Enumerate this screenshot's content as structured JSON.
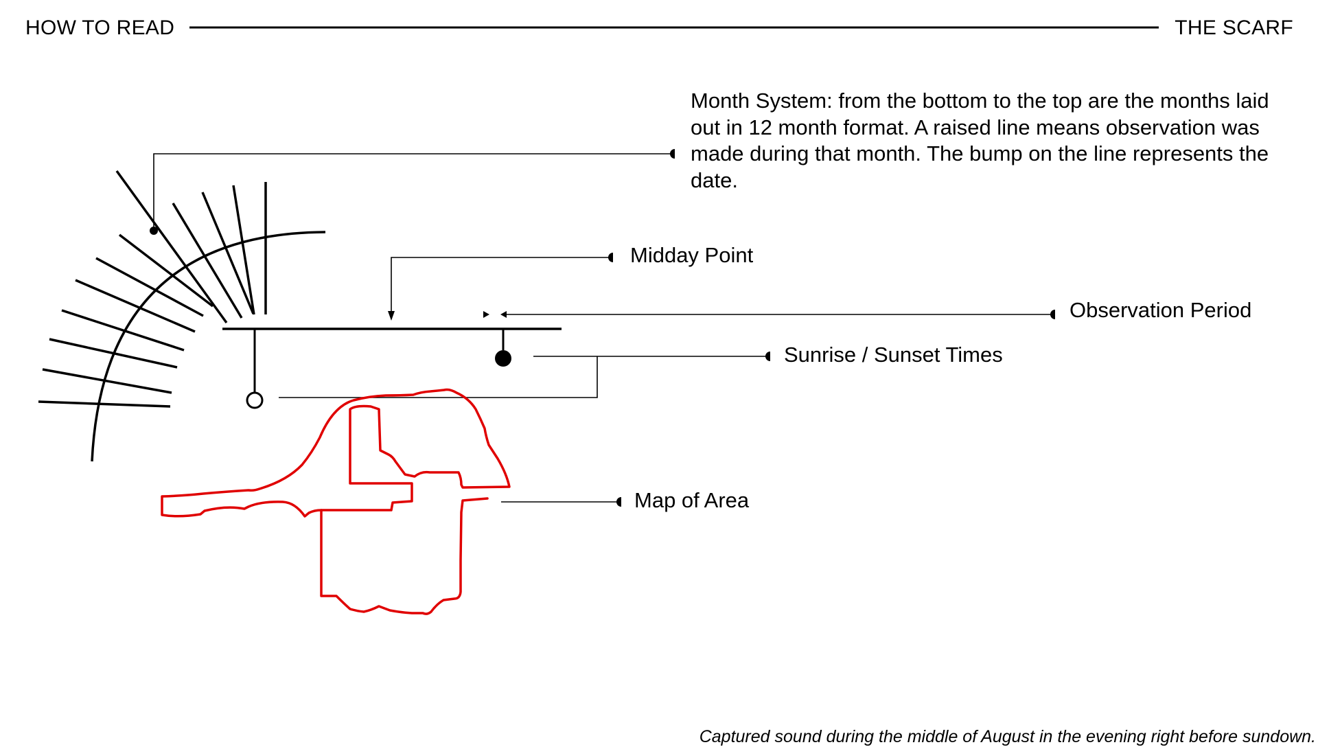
{
  "header": {
    "left": "HOW TO READ",
    "right": "THE SCARF"
  },
  "annotations": {
    "month_system": "Month System: from the bottom to the top are the months laid out in 12 month format. A raised line means observation was made during that month. The bump on the line represents the date.",
    "midday_point": "Midday Point",
    "observation_period": "Observation Period",
    "sunrise_sunset": "Sunrise / Sunset Times",
    "map_of_area": "Map of Area"
  },
  "caption": "Captured sound during the middle of August in the evening right before sundown.",
  "colors": {
    "ink": "#000000",
    "map_outline": "#e00000",
    "background": "#ffffff"
  }
}
